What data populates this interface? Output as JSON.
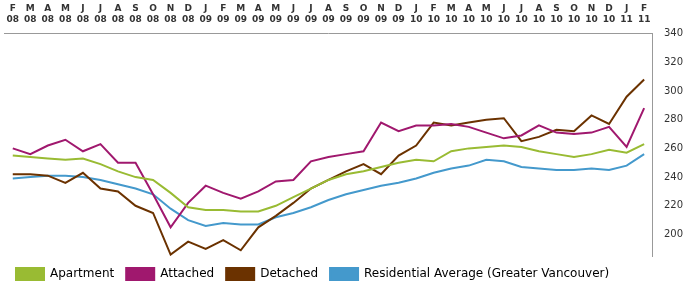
{
  "chart_data": {
    "type": "line",
    "categories": [
      [
        "F",
        "08"
      ],
      [
        "M",
        "08"
      ],
      [
        "A",
        "08"
      ],
      [
        "M",
        "08"
      ],
      [
        "J",
        "08"
      ],
      [
        "J",
        "08"
      ],
      [
        "A",
        "08"
      ],
      [
        "S",
        "08"
      ],
      [
        "O",
        "08"
      ],
      [
        "N",
        "08"
      ],
      [
        "D",
        "08"
      ],
      [
        "J",
        "09"
      ],
      [
        "F",
        "09"
      ],
      [
        "M",
        "09"
      ],
      [
        "A",
        "09"
      ],
      [
        "M",
        "09"
      ],
      [
        "J",
        "09"
      ],
      [
        "J",
        "09"
      ],
      [
        "A",
        "09"
      ],
      [
        "S",
        "09"
      ],
      [
        "O",
        "09"
      ],
      [
        "N",
        "09"
      ],
      [
        "D",
        "09"
      ],
      [
        "J",
        "10"
      ],
      [
        "F",
        "10"
      ],
      [
        "M",
        "10"
      ],
      [
        "A",
        "10"
      ],
      [
        "M",
        "10"
      ],
      [
        "J",
        "10"
      ],
      [
        "J",
        "10"
      ],
      [
        "A",
        "10"
      ],
      [
        "S",
        "10"
      ],
      [
        "O",
        "10"
      ],
      [
        "N",
        "10"
      ],
      [
        "D",
        "10"
      ],
      [
        "J",
        "11"
      ],
      [
        "F",
        "11"
      ]
    ],
    "series": [
      {
        "name": "Apartment",
        "color": "#99bb33",
        "values": [
          255,
          254,
          253,
          252,
          253,
          249,
          244,
          240,
          238,
          229,
          219,
          217,
          217,
          216,
          216,
          220,
          226,
          232,
          238,
          242,
          244,
          247,
          250,
          252,
          251,
          258,
          260,
          261,
          262,
          261,
          258,
          256,
          254,
          256,
          259,
          257,
          263
        ]
      },
      {
        "name": "Attached",
        "color": "#a0186e",
        "values": [
          260,
          256,
          262,
          266,
          258,
          263,
          250,
          250,
          228,
          205,
          222,
          234,
          229,
          225,
          230,
          237,
          238,
          251,
          254,
          256,
          258,
          278,
          272,
          276,
          276,
          277,
          275,
          271,
          267,
          269,
          276,
          271,
          270,
          271,
          275,
          261,
          288
        ]
      },
      {
        "name": "Detached",
        "color": "#6b3200",
        "values": [
          242,
          242,
          241,
          236,
          243,
          232,
          230,
          220,
          215,
          186,
          195,
          190,
          196,
          189,
          205,
          213,
          222,
          232,
          238,
          244,
          249,
          242,
          255,
          262,
          278,
          276,
          278,
          280,
          281,
          265,
          268,
          273,
          272,
          283,
          277,
          296,
          308
        ]
      },
      {
        "name": "Residential Average (Greater Vancouver)",
        "color": "#4499cc",
        "values": [
          239,
          240,
          241,
          241,
          240,
          238,
          235,
          232,
          228,
          218,
          210,
          206,
          208,
          207,
          207,
          212,
          215,
          219,
          224,
          228,
          231,
          234,
          236,
          239,
          243,
          246,
          248,
          252,
          251,
          247,
          246,
          245,
          245,
          246,
          245,
          248,
          256
        ]
      }
    ],
    "ylim": [
      185,
      340
    ],
    "yticks": [
      200,
      220,
      240,
      260,
      280,
      300,
      320,
      340
    ],
    "grid": false,
    "legend": "bottom"
  }
}
